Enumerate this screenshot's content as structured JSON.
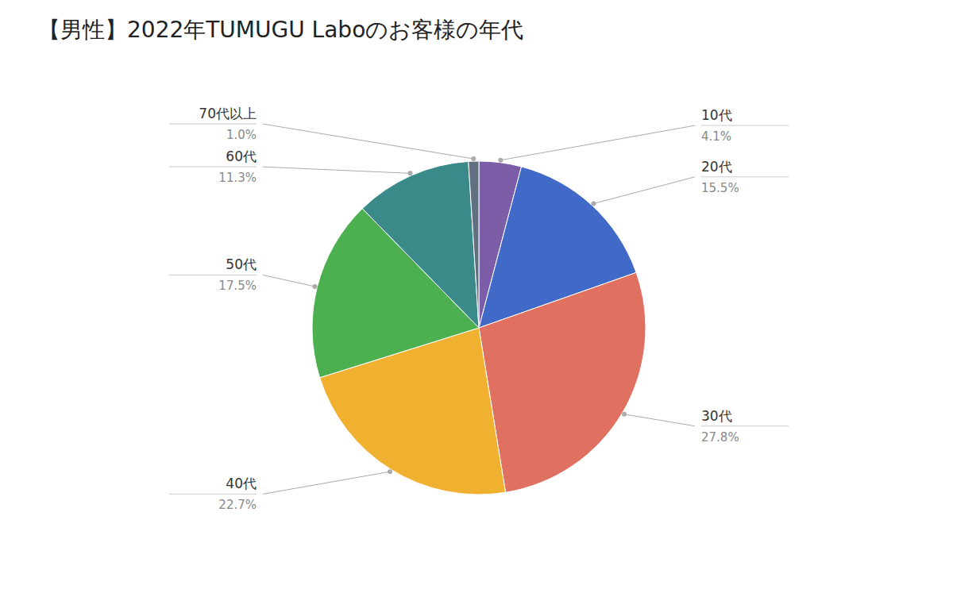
{
  "chart_data": {
    "type": "pie",
    "title": "【男性】2022年TUMUGU Laboのお客様の年代",
    "categories": [
      "10代",
      "20代",
      "30代",
      "40代",
      "50代",
      "60代",
      "70代以上"
    ],
    "values": [
      4.1,
      15.5,
      27.8,
      22.7,
      17.5,
      11.3,
      1.0
    ],
    "value_labels": [
      "4.1%",
      "15.5%",
      "27.8%",
      "22.7%",
      "17.5%",
      "11.3%",
      "1.0%"
    ],
    "colors": [
      "#7B5EA7",
      "#4169C8",
      "#E07060",
      "#F0B030",
      "#4CAF50",
      "#3A8A8A",
      "#607080"
    ],
    "data_labels": true
  }
}
